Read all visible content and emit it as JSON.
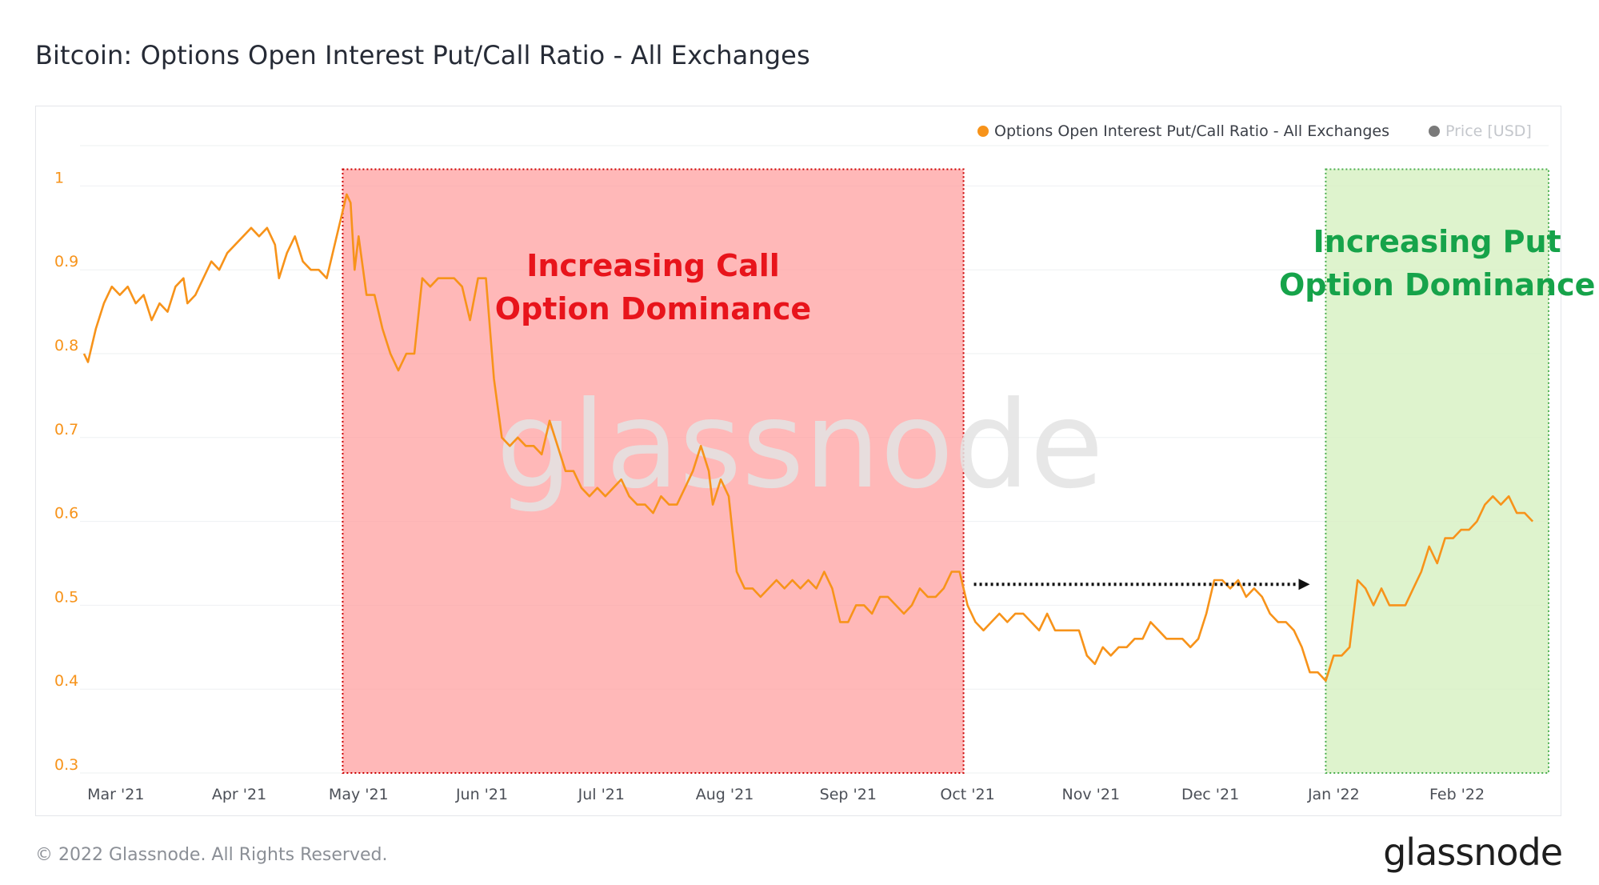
{
  "page": {
    "title": "Bitcoin: Options Open Interest Put/Call Ratio - All Exchanges",
    "copyright": "© 2022 Glassnode. All Rights Reserved.",
    "logo": "glassnode",
    "watermark": "glassnode"
  },
  "colors": {
    "series": "#f7931a",
    "price_legend": "#7a7a7a",
    "call_box_fill": "#ff9c9c",
    "call_box_border": "#cc0000",
    "call_text": "#e8141b",
    "put_box_fill": "#d6f0c0",
    "put_box_border": "#4caf50",
    "put_text": "#16a34a"
  },
  "chart_data": {
    "type": "line",
    "title": "Bitcoin: Options Open Interest Put/Call Ratio - All Exchanges",
    "xlabel": "",
    "ylabel": "",
    "ylim": [
      0.3,
      1.05
    ],
    "yticks": [
      0.3,
      0.4,
      0.5,
      0.6,
      0.7,
      0.8,
      0.9,
      1
    ],
    "ytick_labels": [
      "0.3",
      "0.4",
      "0.5",
      "0.6",
      "0.7",
      "0.8",
      "0.9",
      "1"
    ],
    "xlim": [
      "2021-02-20",
      "2022-02-24"
    ],
    "xticks": [
      {
        "date": "2021-03-01",
        "label": "Mar '21"
      },
      {
        "date": "2021-04-01",
        "label": "Apr '21"
      },
      {
        "date": "2021-05-01",
        "label": "May '21"
      },
      {
        "date": "2021-06-01",
        "label": "Jun '21"
      },
      {
        "date": "2021-07-01",
        "label": "Jul '21"
      },
      {
        "date": "2021-08-01",
        "label": "Aug '21"
      },
      {
        "date": "2021-09-01",
        "label": "Sep '21"
      },
      {
        "date": "2021-10-01",
        "label": "Oct '21"
      },
      {
        "date": "2021-11-01",
        "label": "Nov '21"
      },
      {
        "date": "2021-12-01",
        "label": "Dec '21"
      },
      {
        "date": "2022-01-01",
        "label": "Jan '22"
      },
      {
        "date": "2022-02-01",
        "label": "Feb '22"
      }
    ],
    "grid": true,
    "legend_position": "top-right",
    "legend": [
      {
        "label": "Options Open Interest Put/Call Ratio - All Exchanges",
        "active": true
      },
      {
        "label": "Price [USD]",
        "active": false
      }
    ],
    "series": [
      {
        "name": "Options Open Interest Put/Call Ratio - All Exchanges",
        "points": [
          [
            "2021-02-21",
            0.8
          ],
          [
            "2021-02-22",
            0.79
          ],
          [
            "2021-02-24",
            0.83
          ],
          [
            "2021-02-26",
            0.86
          ],
          [
            "2021-02-28",
            0.88
          ],
          [
            "2021-03-02",
            0.87
          ],
          [
            "2021-03-04",
            0.88
          ],
          [
            "2021-03-06",
            0.86
          ],
          [
            "2021-03-08",
            0.87
          ],
          [
            "2021-03-10",
            0.84
          ],
          [
            "2021-03-12",
            0.86
          ],
          [
            "2021-03-14",
            0.85
          ],
          [
            "2021-03-16",
            0.88
          ],
          [
            "2021-03-18",
            0.89
          ],
          [
            "2021-03-19",
            0.86
          ],
          [
            "2021-03-21",
            0.87
          ],
          [
            "2021-03-23",
            0.89
          ],
          [
            "2021-03-25",
            0.91
          ],
          [
            "2021-03-27",
            0.9
          ],
          [
            "2021-03-29",
            0.92
          ],
          [
            "2021-03-31",
            0.93
          ],
          [
            "2021-04-02",
            0.94
          ],
          [
            "2021-04-04",
            0.95
          ],
          [
            "2021-04-06",
            0.94
          ],
          [
            "2021-04-08",
            0.95
          ],
          [
            "2021-04-10",
            0.93
          ],
          [
            "2021-04-11",
            0.89
          ],
          [
            "2021-04-13",
            0.92
          ],
          [
            "2021-04-15",
            0.94
          ],
          [
            "2021-04-17",
            0.91
          ],
          [
            "2021-04-19",
            0.9
          ],
          [
            "2021-04-21",
            0.9
          ],
          [
            "2021-04-23",
            0.89
          ],
          [
            "2021-04-25",
            0.93
          ],
          [
            "2021-04-26",
            0.95
          ],
          [
            "2021-04-28",
            0.99
          ],
          [
            "2021-04-29",
            0.98
          ],
          [
            "2021-04-30",
            0.9
          ],
          [
            "2021-05-01",
            0.94
          ],
          [
            "2021-05-03",
            0.87
          ],
          [
            "2021-05-05",
            0.87
          ],
          [
            "2021-05-07",
            0.83
          ],
          [
            "2021-05-09",
            0.8
          ],
          [
            "2021-05-11",
            0.78
          ],
          [
            "2021-05-13",
            0.8
          ],
          [
            "2021-05-15",
            0.8
          ],
          [
            "2021-05-17",
            0.89
          ],
          [
            "2021-05-19",
            0.88
          ],
          [
            "2021-05-21",
            0.89
          ],
          [
            "2021-05-23",
            0.89
          ],
          [
            "2021-05-25",
            0.89
          ],
          [
            "2021-05-27",
            0.88
          ],
          [
            "2021-05-29",
            0.84
          ],
          [
            "2021-05-31",
            0.89
          ],
          [
            "2021-06-02",
            0.89
          ],
          [
            "2021-06-04",
            0.77
          ],
          [
            "2021-06-06",
            0.7
          ],
          [
            "2021-06-08",
            0.69
          ],
          [
            "2021-06-10",
            0.7
          ],
          [
            "2021-06-12",
            0.69
          ],
          [
            "2021-06-14",
            0.69
          ],
          [
            "2021-06-16",
            0.68
          ],
          [
            "2021-06-18",
            0.72
          ],
          [
            "2021-06-20",
            0.69
          ],
          [
            "2021-06-22",
            0.66
          ],
          [
            "2021-06-24",
            0.66
          ],
          [
            "2021-06-26",
            0.64
          ],
          [
            "2021-06-28",
            0.63
          ],
          [
            "2021-06-30",
            0.64
          ],
          [
            "2021-07-02",
            0.63
          ],
          [
            "2021-07-04",
            0.64
          ],
          [
            "2021-07-06",
            0.65
          ],
          [
            "2021-07-08",
            0.63
          ],
          [
            "2021-07-10",
            0.62
          ],
          [
            "2021-07-12",
            0.62
          ],
          [
            "2021-07-14",
            0.61
          ],
          [
            "2021-07-16",
            0.63
          ],
          [
            "2021-07-18",
            0.62
          ],
          [
            "2021-07-20",
            0.62
          ],
          [
            "2021-07-22",
            0.64
          ],
          [
            "2021-07-24",
            0.66
          ],
          [
            "2021-07-26",
            0.69
          ],
          [
            "2021-07-28",
            0.66
          ],
          [
            "2021-07-29",
            0.62
          ],
          [
            "2021-07-31",
            0.65
          ],
          [
            "2021-08-02",
            0.63
          ],
          [
            "2021-08-04",
            0.54
          ],
          [
            "2021-08-06",
            0.52
          ],
          [
            "2021-08-08",
            0.52
          ],
          [
            "2021-08-10",
            0.51
          ],
          [
            "2021-08-12",
            0.52
          ],
          [
            "2021-08-14",
            0.53
          ],
          [
            "2021-08-16",
            0.52
          ],
          [
            "2021-08-18",
            0.53
          ],
          [
            "2021-08-20",
            0.52
          ],
          [
            "2021-08-22",
            0.53
          ],
          [
            "2021-08-24",
            0.52
          ],
          [
            "2021-08-26",
            0.54
          ],
          [
            "2021-08-28",
            0.52
          ],
          [
            "2021-08-30",
            0.48
          ],
          [
            "2021-09-01",
            0.48
          ],
          [
            "2021-09-03",
            0.5
          ],
          [
            "2021-09-05",
            0.5
          ],
          [
            "2021-09-07",
            0.49
          ],
          [
            "2021-09-09",
            0.51
          ],
          [
            "2021-09-11",
            0.51
          ],
          [
            "2021-09-13",
            0.5
          ],
          [
            "2021-09-15",
            0.49
          ],
          [
            "2021-09-17",
            0.5
          ],
          [
            "2021-09-19",
            0.52
          ],
          [
            "2021-09-21",
            0.51
          ],
          [
            "2021-09-23",
            0.51
          ],
          [
            "2021-09-25",
            0.52
          ],
          [
            "2021-09-27",
            0.54
          ],
          [
            "2021-09-29",
            0.54
          ],
          [
            "2021-10-01",
            0.5
          ],
          [
            "2021-10-03",
            0.48
          ],
          [
            "2021-10-05",
            0.47
          ],
          [
            "2021-10-07",
            0.48
          ],
          [
            "2021-10-09",
            0.49
          ],
          [
            "2021-10-11",
            0.48
          ],
          [
            "2021-10-13",
            0.49
          ],
          [
            "2021-10-15",
            0.49
          ],
          [
            "2021-10-17",
            0.48
          ],
          [
            "2021-10-19",
            0.47
          ],
          [
            "2021-10-21",
            0.49
          ],
          [
            "2021-10-23",
            0.47
          ],
          [
            "2021-10-25",
            0.47
          ],
          [
            "2021-10-27",
            0.47
          ],
          [
            "2021-10-29",
            0.47
          ],
          [
            "2021-10-31",
            0.44
          ],
          [
            "2021-11-02",
            0.43
          ],
          [
            "2021-11-04",
            0.45
          ],
          [
            "2021-11-06",
            0.44
          ],
          [
            "2021-11-08",
            0.45
          ],
          [
            "2021-11-10",
            0.45
          ],
          [
            "2021-11-12",
            0.46
          ],
          [
            "2021-11-14",
            0.46
          ],
          [
            "2021-11-16",
            0.48
          ],
          [
            "2021-11-18",
            0.47
          ],
          [
            "2021-11-20",
            0.46
          ],
          [
            "2021-11-22",
            0.46
          ],
          [
            "2021-11-24",
            0.46
          ],
          [
            "2021-11-26",
            0.45
          ],
          [
            "2021-11-28",
            0.46
          ],
          [
            "2021-11-30",
            0.49
          ],
          [
            "2021-12-02",
            0.53
          ],
          [
            "2021-12-04",
            0.53
          ],
          [
            "2021-12-06",
            0.52
          ],
          [
            "2021-12-08",
            0.53
          ],
          [
            "2021-12-10",
            0.51
          ],
          [
            "2021-12-12",
            0.52
          ],
          [
            "2021-12-14",
            0.51
          ],
          [
            "2021-12-16",
            0.49
          ],
          [
            "2021-12-18",
            0.48
          ],
          [
            "2021-12-20",
            0.48
          ],
          [
            "2021-12-22",
            0.47
          ],
          [
            "2021-12-24",
            0.45
          ],
          [
            "2021-12-26",
            0.42
          ],
          [
            "2021-12-28",
            0.42
          ],
          [
            "2021-12-30",
            0.41
          ],
          [
            "2022-01-01",
            0.44
          ],
          [
            "2022-01-03",
            0.44
          ],
          [
            "2022-01-05",
            0.45
          ],
          [
            "2022-01-07",
            0.53
          ],
          [
            "2022-01-09",
            0.52
          ],
          [
            "2022-01-11",
            0.5
          ],
          [
            "2022-01-13",
            0.52
          ],
          [
            "2022-01-15",
            0.5
          ],
          [
            "2022-01-17",
            0.5
          ],
          [
            "2022-01-19",
            0.5
          ],
          [
            "2022-01-21",
            0.52
          ],
          [
            "2022-01-23",
            0.54
          ],
          [
            "2022-01-25",
            0.57
          ],
          [
            "2022-01-27",
            0.55
          ],
          [
            "2022-01-29",
            0.58
          ],
          [
            "2022-01-31",
            0.58
          ],
          [
            "2022-02-02",
            0.59
          ],
          [
            "2022-02-04",
            0.59
          ],
          [
            "2022-02-06",
            0.6
          ],
          [
            "2022-02-08",
            0.62
          ],
          [
            "2022-02-10",
            0.63
          ],
          [
            "2022-02-12",
            0.62
          ],
          [
            "2022-02-14",
            0.63
          ],
          [
            "2022-02-16",
            0.61
          ],
          [
            "2022-02-18",
            0.61
          ],
          [
            "2022-02-20",
            0.6
          ]
        ]
      }
    ],
    "annotations": [
      {
        "type": "shaded-region",
        "id": "call",
        "x_start": "2021-04-27",
        "x_end": "2021-09-30",
        "y_start": 0.3,
        "y_end": 1.02,
        "text_lines": [
          "Increasing Call",
          "Option Dominance"
        ]
      },
      {
        "type": "shaded-region",
        "id": "put",
        "x_start": "2021-12-30",
        "x_end": "2022-02-24",
        "y_start": 0.3,
        "y_end": 1.02,
        "text_lines": [
          "Increasing Put",
          "Option Dominance"
        ]
      },
      {
        "type": "dotted-arrow",
        "x_start": "2021-10-01",
        "x_end": "2021-12-24",
        "y": 0.525
      }
    ]
  }
}
